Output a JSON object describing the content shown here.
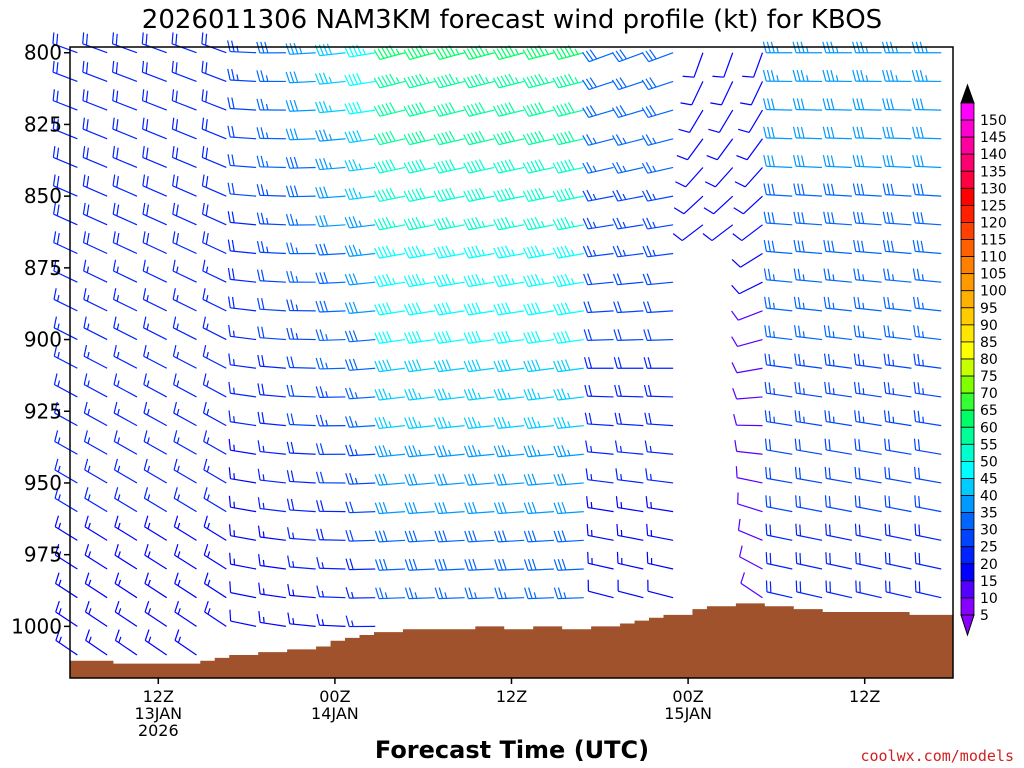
{
  "chart_data": {
    "type": "wind-barb-profile",
    "title": "2026011306 NAM3KM forecast wind profile (kt) for KBOS",
    "xlabel": "Forecast Time (UTC)",
    "credit": "coolwx.com/models",
    "y_ticks": [
      "800",
      "825",
      "850",
      "875",
      "900",
      "925",
      "950",
      "975",
      "1000"
    ],
    "y_values": [
      800,
      825,
      850,
      875,
      900,
      925,
      950,
      975,
      1000
    ],
    "ylim_hpa": [
      798,
      1018
    ],
    "x_ticks": [
      {
        "hour": 12,
        "lines": [
          "12Z",
          "13JAN",
          "2026"
        ]
      },
      {
        "hour": 24,
        "lines": [
          "00Z",
          "14JAN"
        ]
      },
      {
        "hour": 36,
        "lines": [
          "12Z"
        ]
      },
      {
        "hour": 48,
        "lines": [
          "00Z",
          "15JAN"
        ]
      },
      {
        "hour": 60,
        "lines": [
          "12Z"
        ]
      }
    ],
    "xlim_hours": [
      6,
      66
    ],
    "colorbar": {
      "labels": [
        "150",
        "145",
        "140",
        "135",
        "130",
        "125",
        "120",
        "115",
        "110",
        "105",
        "100",
        "95",
        "90",
        "85",
        "80",
        "75",
        "70",
        "65",
        "60",
        "55",
        "50",
        "45",
        "40",
        "35",
        "30",
        "25",
        "20",
        "15",
        "10",
        "5"
      ],
      "colors": [
        "#ff00ff",
        "#ff00d0",
        "#ff00a0",
        "#ff0070",
        "#ff0040",
        "#ff0000",
        "#ff2000",
        "#ff4000",
        "#ff6000",
        "#ff8000",
        "#ff9900",
        "#ffb000",
        "#ffcc00",
        "#ffe600",
        "#ffff00",
        "#c8ff00",
        "#80ff00",
        "#33ff33",
        "#00ff66",
        "#00ff99",
        "#00ffcc",
        "#00ffff",
        "#00ccff",
        "#0099ff",
        "#0066ff",
        "#0044ff",
        "#0022ff",
        "#0000ff",
        "#5500ff",
        "#8800ff"
      ]
    },
    "terrain_color": "#a0522d",
    "surface_pressure": [
      1012,
      1012,
      1012,
      1013,
      1013,
      1013,
      1013,
      1013,
      1013,
      1012,
      1011,
      1010,
      1010,
      1009,
      1009,
      1008,
      1008,
      1007,
      1005,
      1004,
      1003,
      1002,
      1002,
      1001,
      1001,
      1001,
      1001,
      1001,
      1000,
      1000,
      1001,
      1001,
      1000,
      1000,
      1001,
      1001,
      1000,
      1000,
      999,
      998,
      997,
      996,
      996,
      994,
      993,
      993,
      992,
      992,
      993,
      993,
      994,
      994,
      995,
      995,
      995,
      995,
      995,
      995,
      996,
      996,
      996
    ],
    "columns": 30,
    "levels_hpa": [
      800,
      810,
      820,
      830,
      840,
      850,
      860,
      870,
      880,
      890,
      900,
      910,
      920,
      930,
      940,
      950,
      960,
      970,
      980,
      990,
      1000,
      1010
    ],
    "wind_summary": "Westerly to northwesterly winds 15-35 kt early; 40-60 kt west-southwest winds aloft on 14 JAN; light variable winds near surface late 14 JAN; westerly 25-40 kt on 15 JAN."
  }
}
